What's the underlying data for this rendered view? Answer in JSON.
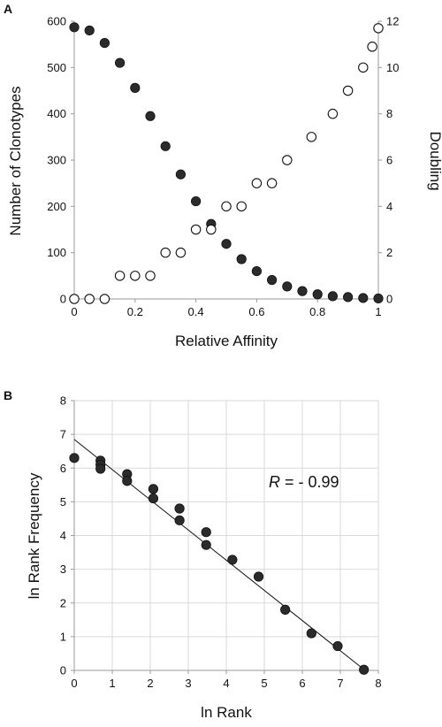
{
  "chart_data": [
    {
      "panel": "A",
      "type": "scatter",
      "xlabel": "Relative Affinity",
      "ylabel": "Number of Clonotypes",
      "y2label": "Doubling",
      "xlim": [
        0,
        1
      ],
      "ylim": [
        0,
        600
      ],
      "y2lim": [
        0,
        12
      ],
      "xticks": [
        "0",
        "0.2",
        "0.4",
        "0.6",
        "0.8",
        "1"
      ],
      "yticks": [
        "0",
        "100",
        "200",
        "300",
        "400",
        "500",
        "600"
      ],
      "y2ticks": [
        "0",
        "2",
        "4",
        "6",
        "8",
        "10",
        "12"
      ],
      "grid": false,
      "series": [
        {
          "style": "filled",
          "axis": "left",
          "color": "#2b2b2b",
          "x": [
            0,
            0.05,
            0.1,
            0.15,
            0.2,
            0.25,
            0.3,
            0.35,
            0.4,
            0.45,
            0.5,
            0.55,
            0.6,
            0.65,
            0.7,
            0.75,
            0.8,
            0.85,
            0.9,
            0.95,
            1.0
          ],
          "y": [
            587,
            580,
            553,
            510,
            456,
            395,
            330,
            269,
            211,
            162,
            119,
            86,
            60,
            41,
            27,
            17,
            10,
            6,
            4,
            2,
            1
          ]
        },
        {
          "style": "open",
          "axis": "right",
          "color": "#ffffff",
          "x": [
            0,
            0.05,
            0.1,
            0.15,
            0.2,
            0.25,
            0.3,
            0.35,
            0.4,
            0.45,
            0.5,
            0.55,
            0.6,
            0.65,
            0.7,
            0.78,
            0.85,
            0.9,
            0.95,
            0.98,
            1.0
          ],
          "y": [
            0,
            0,
            0,
            1,
            1,
            1,
            2,
            2,
            3,
            3,
            4,
            4,
            5,
            5,
            6,
            7,
            8,
            9,
            10,
            10.9,
            11.7
          ]
        }
      ]
    },
    {
      "panel": "B",
      "type": "scatter",
      "xlabel": "ln Rank",
      "ylabel": "ln Rank Frequency",
      "xlim": [
        0,
        8
      ],
      "ylim": [
        0,
        8
      ],
      "xticks": [
        "0",
        "1",
        "2",
        "3",
        "4",
        "5",
        "6",
        "7",
        "8"
      ],
      "yticks": [
        "0",
        "1",
        "2",
        "3",
        "4",
        "5",
        "6",
        "7",
        "8"
      ],
      "grid": true,
      "annotation": {
        "prefix": "R",
        "text": " = - 0.99"
      },
      "fit_line": {
        "x": [
          0,
          7.65
        ],
        "y": [
          6.85,
          0
        ]
      },
      "series": [
        {
          "style": "filled",
          "color": "#2b2b2b",
          "x": [
            0,
            0.69,
            0.69,
            0.69,
            1.39,
            1.39,
            2.08,
            2.08,
            2.77,
            2.77,
            3.47,
            3.47,
            4.16,
            4.85,
            5.55,
            6.24,
            6.93,
            7.62
          ],
          "y": [
            6.3,
            6.22,
            6.1,
            5.98,
            5.82,
            5.62,
            5.38,
            5.1,
            4.8,
            4.45,
            4.1,
            3.72,
            3.28,
            2.78,
            1.8,
            1.1,
            0.72,
            0.02
          ]
        }
      ]
    }
  ]
}
